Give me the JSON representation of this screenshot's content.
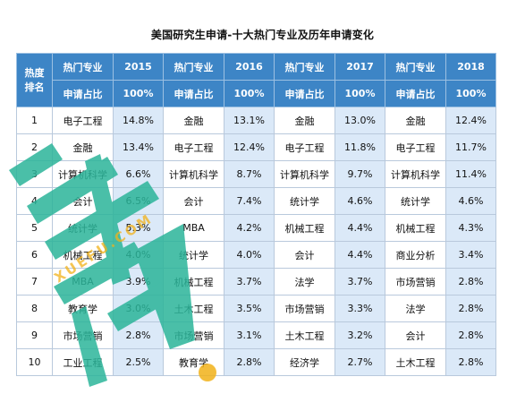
{
  "title": "美国研究生申请-十大热门专业及历年申请变化",
  "header": {
    "rank_label_line1": "热度",
    "rank_label_line2": "排名",
    "major_label": "热门专业",
    "share_label": "申请占比",
    "years": [
      "2015",
      "2016",
      "2017",
      "2018"
    ],
    "totals": [
      "100%",
      "100%",
      "100%",
      "100%"
    ]
  },
  "rows": [
    {
      "rank": "1",
      "cells": [
        [
          "电子工程",
          "14.8%"
        ],
        [
          "金融",
          "13.1%"
        ],
        [
          "金融",
          "13.0%"
        ],
        [
          "金融",
          "12.4%"
        ]
      ]
    },
    {
      "rank": "2",
      "cells": [
        [
          "金融",
          "13.4%"
        ],
        [
          "电子工程",
          "12.4%"
        ],
        [
          "电子工程",
          "11.8%"
        ],
        [
          "电子工程",
          "11.7%"
        ]
      ]
    },
    {
      "rank": "3",
      "cells": [
        [
          "计算机科学",
          "6.6%"
        ],
        [
          "计算机科学",
          "8.7%"
        ],
        [
          "计算机科学",
          "9.7%"
        ],
        [
          "计算机科学",
          "11.4%"
        ]
      ]
    },
    {
      "rank": "4",
      "cells": [
        [
          "会计",
          "6.5%"
        ],
        [
          "会计",
          "7.4%"
        ],
        [
          "统计学",
          "4.6%"
        ],
        [
          "统计学",
          "4.6%"
        ]
      ]
    },
    {
      "rank": "5",
      "cells": [
        [
          "统计学",
          "5.3%"
        ],
        [
          "MBA",
          "4.2%"
        ],
        [
          "机械工程",
          "4.4%"
        ],
        [
          "机械工程",
          "4.3%"
        ]
      ]
    },
    {
      "rank": "6",
      "cells": [
        [
          "机械工程",
          "4.0%"
        ],
        [
          "统计学",
          "4.0%"
        ],
        [
          "会计",
          "4.4%"
        ],
        [
          "商业分析",
          "3.4%"
        ]
      ]
    },
    {
      "rank": "7",
      "cells": [
        [
          "MBA",
          "3.9%"
        ],
        [
          "机械工程",
          "3.7%"
        ],
        [
          "法学",
          "3.7%"
        ],
        [
          "市场营销",
          "2.8%"
        ]
      ]
    },
    {
      "rank": "8",
      "cells": [
        [
          "教育学",
          "3.0%"
        ],
        [
          "土木工程",
          "3.5%"
        ],
        [
          "市场营销",
          "3.3%"
        ],
        [
          "法学",
          "2.8%"
        ]
      ]
    },
    {
      "rank": "9",
      "cells": [
        [
          "市场营销",
          "2.8%"
        ],
        [
          "市场营销",
          "3.1%"
        ],
        [
          "土木工程",
          "3.2%"
        ],
        [
          "会计",
          "2.8%"
        ]
      ]
    },
    {
      "rank": "10",
      "cells": [
        [
          "工业工程",
          "2.5%"
        ],
        [
          "教育学",
          "2.8%"
        ],
        [
          "经济学",
          "2.7%"
        ],
        [
          "土木工程",
          "2.8%"
        ]
      ]
    }
  ],
  "watermark": {
    "color_main": "#2bb59a",
    "color_accent": "#f2b21a",
    "text": "XUEFU.COM"
  }
}
